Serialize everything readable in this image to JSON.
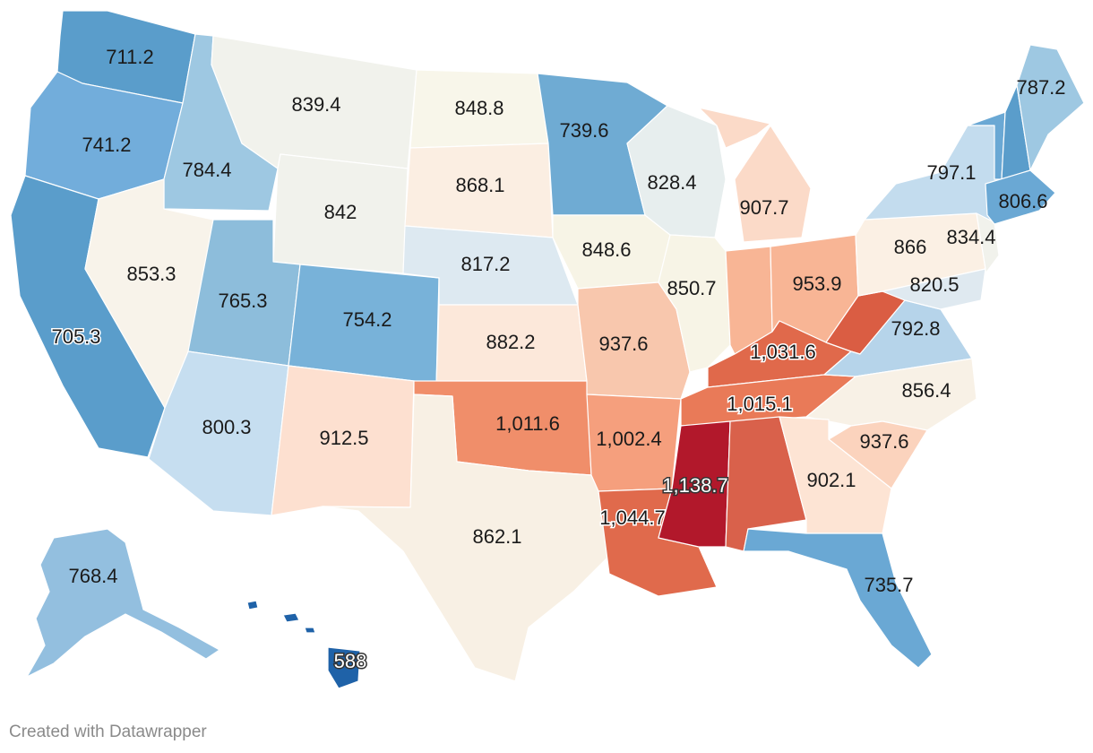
{
  "credit": "Created with Datawrapper",
  "legend_scale": {
    "low_color": "#2166ac",
    "mid_color": "#f7f7f2",
    "high_color": "#b2182b"
  },
  "states": [
    {
      "id": "WA",
      "value": "711.2"
    },
    {
      "id": "OR",
      "value": "741.2"
    },
    {
      "id": "CA",
      "value": "705.3"
    },
    {
      "id": "ID",
      "value": "784.4"
    },
    {
      "id": "NV",
      "value": "853.3"
    },
    {
      "id": "MT",
      "value": "839.4"
    },
    {
      "id": "WY",
      "value": "842"
    },
    {
      "id": "UT",
      "value": "765.3"
    },
    {
      "id": "AZ",
      "value": "800.3"
    },
    {
      "id": "CO",
      "value": "754.2"
    },
    {
      "id": "NM",
      "value": "912.5"
    },
    {
      "id": "ND",
      "value": "848.8"
    },
    {
      "id": "SD",
      "value": "868.1"
    },
    {
      "id": "NE",
      "value": "817.2"
    },
    {
      "id": "KS",
      "value": "882.2"
    },
    {
      "id": "OK",
      "value": "1,011.6"
    },
    {
      "id": "TX",
      "value": "862.1"
    },
    {
      "id": "MN",
      "value": "739.6"
    },
    {
      "id": "IA",
      "value": "848.6"
    },
    {
      "id": "MO",
      "value": "937.6"
    },
    {
      "id": "AR",
      "value": "1,002.4"
    },
    {
      "id": "LA",
      "value": "1,044.7"
    },
    {
      "id": "WI",
      "value": "828.4"
    },
    {
      "id": "IL",
      "value": "850.7"
    },
    {
      "id": "MI",
      "value": "907.7"
    },
    {
      "id": "IN",
      "value": "953.9"
    },
    {
      "id": "OH",
      "value": "953.9"
    },
    {
      "id": "KY",
      "value": "1,031.6"
    },
    {
      "id": "TN",
      "value": "1,015.1"
    },
    {
      "id": "MS",
      "value": "1,138.7"
    },
    {
      "id": "AL",
      "value": "1,044.7"
    },
    {
      "id": "WV",
      "value": "1,031.6"
    },
    {
      "id": "VA",
      "value": "792.8"
    },
    {
      "id": "NC",
      "value": "856.4"
    },
    {
      "id": "SC",
      "value": "937.6"
    },
    {
      "id": "GA",
      "value": "902.1"
    },
    {
      "id": "FL",
      "value": "735.7"
    },
    {
      "id": "PA",
      "value": "866"
    },
    {
      "id": "NY",
      "value": "797.1"
    },
    {
      "id": "NJ",
      "value": "834.4"
    },
    {
      "id": "MD",
      "value": "820.5"
    },
    {
      "id": "VT",
      "value": ""
    },
    {
      "id": "NH",
      "value": ""
    },
    {
      "id": "ME",
      "value": "787.2"
    },
    {
      "id": "MA",
      "value": "806.6"
    },
    {
      "id": "AK",
      "value": "768.4"
    },
    {
      "id": "HI",
      "value": "588"
    }
  ],
  "labels": [
    {
      "text": "711.2"
    },
    {
      "text": "741.2"
    },
    {
      "text": "705.3"
    },
    {
      "text": "784.4"
    },
    {
      "text": "853.3"
    },
    {
      "text": "839.4"
    },
    {
      "text": "842"
    },
    {
      "text": "765.3"
    },
    {
      "text": "800.3"
    },
    {
      "text": "754.2"
    },
    {
      "text": "912.5"
    },
    {
      "text": "848.8"
    },
    {
      "text": "868.1"
    },
    {
      "text": "817.2"
    },
    {
      "text": "882.2"
    },
    {
      "text": "1,011.6"
    },
    {
      "text": "862.1"
    },
    {
      "text": "739.6"
    },
    {
      "text": "848.6"
    },
    {
      "text": "937.6"
    },
    {
      "text": "1,002.4"
    },
    {
      "text": "1,044.7"
    },
    {
      "text": "828.4"
    },
    {
      "text": "850.7"
    },
    {
      "text": "907.7"
    },
    {
      "text": "953.9"
    },
    {
      "text": "1,031.6"
    },
    {
      "text": "1,015.1"
    },
    {
      "text": "1,138.7"
    },
    {
      "text": "792.8"
    },
    {
      "text": "856.4"
    },
    {
      "text": "937.6"
    },
    {
      "text": "902.1"
    },
    {
      "text": "735.7"
    },
    {
      "text": "866"
    },
    {
      "text": "797.1"
    },
    {
      "text": "834.4"
    },
    {
      "text": "820.5"
    },
    {
      "text": "787.2"
    },
    {
      "text": "806.6"
    },
    {
      "text": "768.4"
    },
    {
      "text": "588"
    }
  ]
}
